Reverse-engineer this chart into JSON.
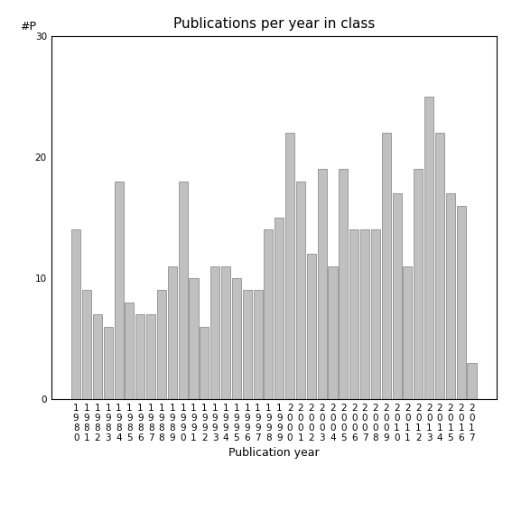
{
  "years": [
    1980,
    1981,
    1982,
    1983,
    1984,
    1985,
    1986,
    1987,
    1988,
    1989,
    1990,
    1991,
    1992,
    1993,
    1994,
    1995,
    1996,
    1997,
    1998,
    1999,
    2000,
    2001,
    2002,
    2003,
    2004,
    2005,
    2006,
    2007,
    2008,
    2009,
    2010,
    2011,
    2012,
    2013,
    2014,
    2015,
    2016,
    2017
  ],
  "values": [
    14,
    9,
    7,
    6,
    18,
    8,
    7,
    7,
    9,
    11,
    18,
    10,
    6,
    11,
    11,
    10,
    9,
    9,
    14,
    15,
    22,
    18,
    12,
    19,
    11,
    19,
    14,
    14,
    14,
    22,
    17,
    11,
    19,
    25,
    22,
    17,
    16,
    3
  ],
  "bar_color": "#c0c0c0",
  "bar_edgecolor": "#808080",
  "title": "Publications per year in class",
  "xlabel": "Publication year",
  "ylabel": "#P",
  "ylim": [
    0,
    30
  ],
  "yticks": [
    0,
    10,
    20,
    30
  ],
  "background_color": "#ffffff",
  "title_fontsize": 11,
  "label_fontsize": 9,
  "tick_fontsize": 7.5
}
